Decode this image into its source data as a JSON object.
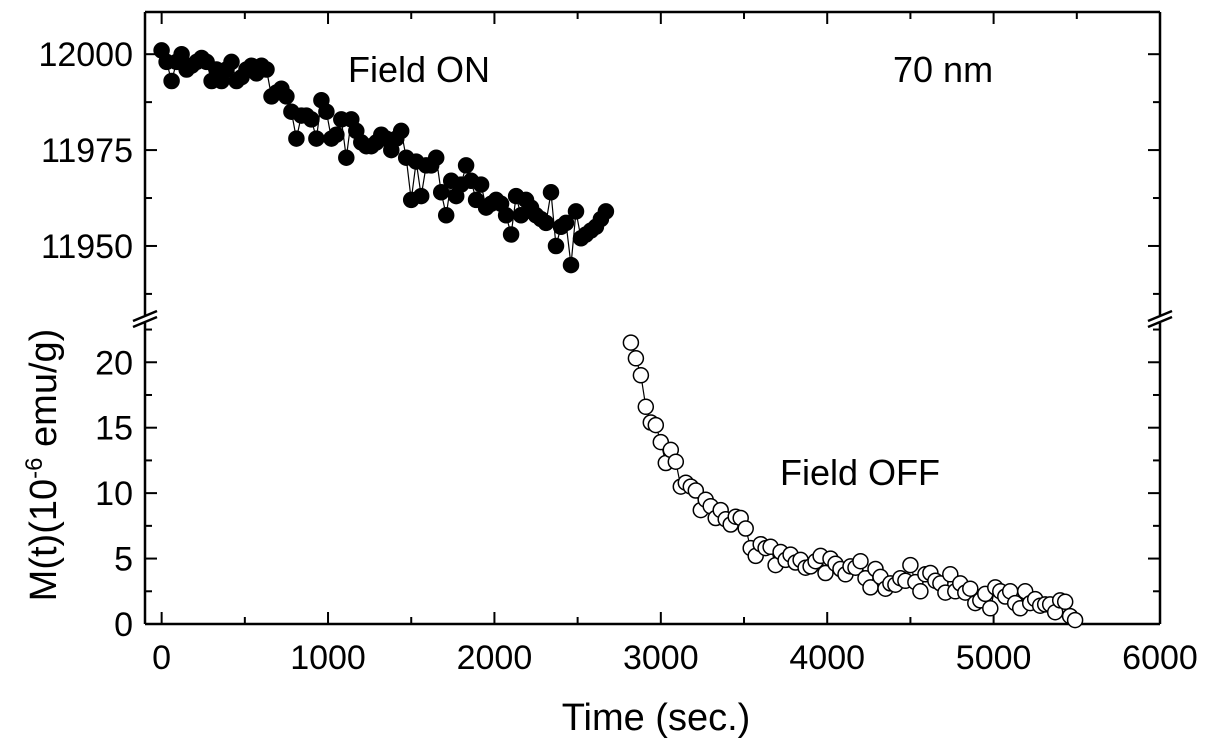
{
  "chart_data": {
    "type": "scatter",
    "xlabel": "Time (sec.)",
    "ylabel_main": "M(t)(10",
    "ylabel_exp": "-6",
    "ylabel_unit": " emu/g)",
    "xlim": [
      -100,
      6000
    ],
    "x_ticks": [
      "0",
      "1000",
      "2000",
      "3000",
      "4000",
      "5000",
      "6000"
    ],
    "x_tick_values": [
      0,
      1000,
      2000,
      3000,
      4000,
      5000,
      6000
    ],
    "broken_y_axis": true,
    "upper_panel": {
      "ylim": [
        11932,
        12011
      ],
      "y_ticks": [
        "11950",
        "11975",
        "12000"
      ],
      "y_tick_values": [
        11950,
        11975,
        12000
      ]
    },
    "lower_panel": {
      "ylim": [
        0,
        23
      ],
      "y_ticks": [
        "0",
        "5",
        "10",
        "15",
        "20"
      ],
      "y_tick_values": [
        0,
        5,
        10,
        15,
        20
      ]
    },
    "annotations": {
      "field_on": "Field ON",
      "field_off": "Field OFF",
      "thickness": "70 nm"
    },
    "series": [
      {
        "name": "Field ON",
        "panel": "upper",
        "marker": "filled-circle",
        "color": "#000000",
        "x": [
          0,
          30,
          60,
          90,
          120,
          150,
          180,
          210,
          240,
          270,
          300,
          330,
          360,
          390,
          420,
          450,
          480,
          510,
          540,
          570,
          600,
          630,
          660,
          690,
          720,
          750,
          780,
          810,
          840,
          870,
          900,
          930,
          960,
          990,
          1020,
          1050,
          1080,
          1110,
          1140,
          1170,
          1200,
          1230,
          1260,
          1290,
          1320,
          1350,
          1380,
          1410,
          1440,
          1470,
          1500,
          1530,
          1560,
          1590,
          1620,
          1650,
          1680,
          1710,
          1740,
          1770,
          1800,
          1830,
          1860,
          1890,
          1920,
          1950,
          1980,
          2010,
          2040,
          2070,
          2100,
          2130,
          2160,
          2190,
          2220,
          2250,
          2280,
          2310,
          2340,
          2370,
          2400,
          2430,
          2460,
          2490,
          2520,
          2550,
          2580,
          2610,
          2640,
          2670
        ],
        "y": [
          12001,
          11998,
          11993,
          11998,
          12000,
          11996,
          11997,
          11998,
          11999,
          11998,
          11993,
          11996,
          11993,
          11996,
          11998,
          11993,
          11994,
          11996,
          11997,
          11995,
          11997,
          11996,
          11989,
          11990,
          11991,
          11989,
          11985,
          11978,
          11984,
          11984,
          11983,
          11978,
          11988,
          11985,
          11978,
          11979,
          11983,
          11973,
          11983,
          11980,
          11977,
          11976,
          11976,
          11977,
          11979,
          11978,
          11975,
          11978,
          11980,
          11973,
          11962,
          11972,
          11963,
          11971,
          11971,
          11973,
          11964,
          11958,
          11967,
          11963,
          11966,
          11971,
          11967,
          11962,
          11966,
          11960,
          11961,
          11962,
          11961,
          11958,
          11953,
          11963,
          11958,
          11962,
          11960,
          11958,
          11957,
          11956,
          11964,
          11950,
          11955,
          11956,
          11945,
          11959,
          11952,
          11953,
          11954,
          11955,
          11957,
          11959
        ]
      },
      {
        "name": "Field OFF",
        "panel": "lower",
        "marker": "open-circle",
        "color": "#000000",
        "x": [
          2820,
          2850,
          2880,
          2910,
          2940,
          2970,
          3000,
          3030,
          3060,
          3090,
          3120,
          3150,
          3180,
          3210,
          3240,
          3270,
          3300,
          3330,
          3360,
          3390,
          3420,
          3450,
          3480,
          3510,
          3540,
          3570,
          3600,
          3630,
          3660,
          3690,
          3720,
          3750,
          3780,
          3810,
          3840,
          3870,
          3900,
          3930,
          3960,
          3990,
          4020,
          4050,
          4080,
          4110,
          4140,
          4170,
          4200,
          4230,
          4260,
          4290,
          4320,
          4350,
          4380,
          4410,
          4440,
          4470,
          4500,
          4530,
          4560,
          4590,
          4620,
          4650,
          4680,
          4710,
          4740,
          4770,
          4800,
          4830,
          4860,
          4890,
          4920,
          4950,
          4980,
          5010,
          5040,
          5070,
          5100,
          5130,
          5160,
          5190,
          5220,
          5250,
          5280,
          5310,
          5340,
          5370,
          5400,
          5430,
          5460,
          5490
        ],
        "y": [
          21.5,
          20.3,
          19,
          16.6,
          15.4,
          15.2,
          13.9,
          12.3,
          13.3,
          12.4,
          10.5,
          10.8,
          10.5,
          10.2,
          8.7,
          9.5,
          9,
          8.1,
          8.7,
          8,
          7.6,
          8.2,
          8.1,
          7.3,
          5.8,
          5.2,
          6.1,
          5.8,
          5.9,
          4.5,
          5.5,
          4.9,
          5.3,
          4.7,
          4.9,
          4.3,
          4.4,
          4.8,
          5.2,
          3.9,
          5,
          4.6,
          4.2,
          3.8,
          4.4,
          4.3,
          4.8,
          3.5,
          2.8,
          4.2,
          3.6,
          2.7,
          3.1,
          3,
          3.5,
          3.3,
          4.5,
          3.2,
          2.5,
          3.8,
          3.9,
          3.3,
          3.1,
          2.4,
          3.8,
          2.5,
          3.1,
          2.4,
          2.7,
          1.6,
          1.8,
          2.3,
          1.2,
          2.8,
          2.5,
          2.1,
          2.5,
          1.6,
          1.2,
          2.5,
          1.6,
          1.9,
          1.4,
          1.5,
          1.5,
          0.9,
          1.8,
          1.7,
          0.6,
          0.3
        ]
      }
    ]
  }
}
